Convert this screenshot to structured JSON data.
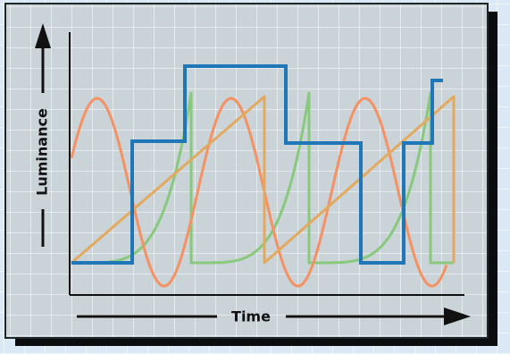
{
  "colors": {
    "page_background_tint": "#dbe9f6",
    "page_grid": "#ffffff",
    "panel_background": "#c9d3d8",
    "panel_grid": "#ffffff",
    "panel_border": "#1e2629",
    "panel_shadow": "#0a0c0d",
    "axis": "#111111",
    "luminance_step": "#1f77b7",
    "luminance_sine": "#f59163",
    "luminance_ramp": "#e3aa5f",
    "luminance_exponential": "#88c97d"
  },
  "axes": {
    "x_title": "Time",
    "y_title": "Luminance"
  },
  "icons": {
    "x_arrow": "right-arrow-icon",
    "y_arrow": "up-arrow-icon"
  }
}
